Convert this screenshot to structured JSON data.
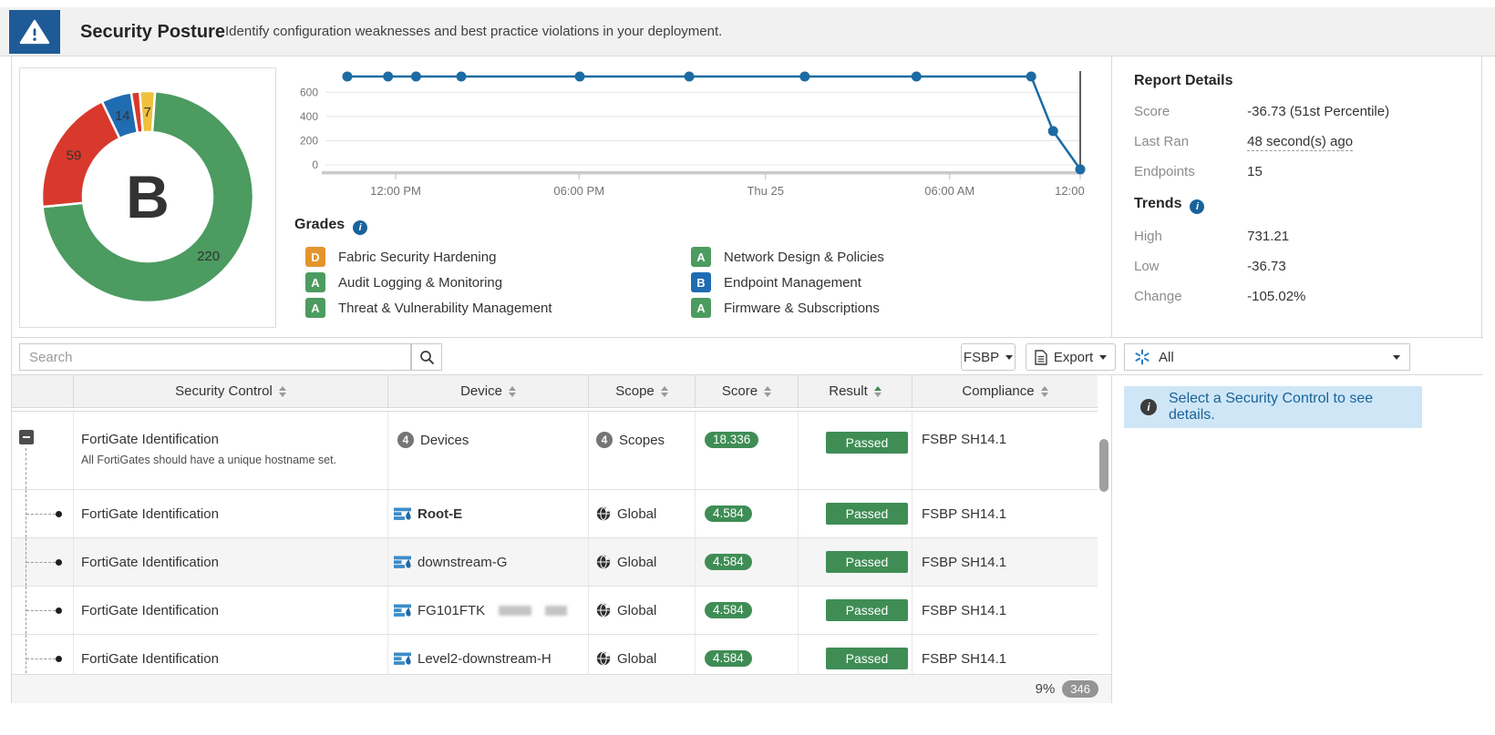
{
  "header": {
    "title": "Security Posture",
    "subtitle": "Identify configuration weaknesses and best practice violations in your deployment."
  },
  "icons": {
    "info": "i"
  },
  "colors": {
    "brand_blue": "#1e5b96",
    "grade_a_green": "#4c9b60",
    "grade_b_blue": "#1f6cb1",
    "grade_d_orange": "#e5942d",
    "fail_red": "#d8392c",
    "warn_yellow": "#efc03c",
    "pass_green": "#3f8d55",
    "chart_line": "#1c6ba4",
    "fabric_icon_blue": "#2e7fc0"
  },
  "chart_data": [
    {
      "type": "pie",
      "title": "",
      "center_label": "B",
      "start_angle": 4,
      "segments": [
        {
          "value": 220,
          "color": "#4c9b60",
          "label": "220"
        },
        {
          "value": 59,
          "color": "#d8392c",
          "label": "59"
        },
        {
          "value": 14,
          "color": "#1f6cb1",
          "label": "14"
        },
        {
          "value": 4,
          "color": "#d8392c",
          "label": ""
        },
        {
          "value": 7,
          "color": "#efc03c",
          "label": "7"
        }
      ]
    },
    {
      "type": "line",
      "title": "",
      "xlabel": "",
      "ylabel": "",
      "ylim": [
        -60,
        790
      ],
      "y_ticks": [
        0,
        200,
        400,
        600
      ],
      "x_ticks": [
        {
          "label": "12:00 PM",
          "pos": 0.093
        },
        {
          "label": "06:00 PM",
          "pos": 0.336
        },
        {
          "label": "Thu 25",
          "pos": 0.583
        },
        {
          "label": "06:00 AM",
          "pos": 0.827
        },
        {
          "label": "12:00 PM",
          "pos": 1.0
        }
      ],
      "points": [
        {
          "x": 0.029,
          "y": 731.21
        },
        {
          "x": 0.083,
          "y": 731.21
        },
        {
          "x": 0.12,
          "y": 731.21
        },
        {
          "x": 0.18,
          "y": 731.21
        },
        {
          "x": 0.337,
          "y": 731.21
        },
        {
          "x": 0.482,
          "y": 731.21
        },
        {
          "x": 0.635,
          "y": 731.21
        },
        {
          "x": 0.783,
          "y": 731.21
        },
        {
          "x": 0.935,
          "y": 731.21
        },
        {
          "x": 0.964,
          "y": 280
        },
        {
          "x": 1.0,
          "y": -36.73
        }
      ],
      "marker_x": 1.0,
      "line_color": "#1c6ba4"
    }
  ],
  "grades": {
    "title": "Grades",
    "items": [
      {
        "letter": "D",
        "color": "#e5942d",
        "label": "Fabric Security Hardening"
      },
      {
        "letter": "A",
        "color": "#4c9b60",
        "label": "Audit Logging & Monitoring"
      },
      {
        "letter": "A",
        "color": "#4c9b60",
        "label": "Threat & Vulnerability Management"
      },
      {
        "letter": "A",
        "color": "#4c9b60",
        "label": "Network Design & Policies"
      },
      {
        "letter": "B",
        "color": "#1f6cb1",
        "label": "Endpoint Management"
      },
      {
        "letter": "A",
        "color": "#4c9b60",
        "label": "Firmware & Subscriptions"
      }
    ]
  },
  "report": {
    "heading": "Report Details",
    "score_label": "Score",
    "score_value": "-36.73 (51st Percentile)",
    "last_ran_label": "Last Ran",
    "last_ran_value": "48 second(s) ago",
    "endpoints_label": "Endpoints",
    "endpoints_value": "15",
    "trends_heading": "Trends",
    "high_label": "High",
    "high_value": "731.21",
    "low_label": "Low",
    "low_value": "-36.73",
    "change_label": "Change",
    "change_value": "-105.02%"
  },
  "toolbar": {
    "search_placeholder": "Search",
    "fsbp_label": "FSBP",
    "export_label": "Export",
    "filter_value": "All"
  },
  "table": {
    "columns": [
      {
        "label": "Security Control",
        "sort": "none"
      },
      {
        "label": "Device",
        "sort": "none"
      },
      {
        "label": "Scope",
        "sort": "none"
      },
      {
        "label": "Score",
        "sort": "none"
      },
      {
        "label": "Result",
        "sort": "asc"
      },
      {
        "label": "Compliance",
        "sort": "none"
      }
    ],
    "rows": [
      {
        "level": "group",
        "expanded": true,
        "control": "FortiGate Identification",
        "description": "All FortiGates should have a unique hostname set.",
        "device": {
          "count": "4",
          "label": "Devices"
        },
        "scope": {
          "count": "4",
          "label": "Scopes"
        },
        "score": "18.336",
        "result": "Passed",
        "compliance": "FSBP SH14.1",
        "shaded": false
      },
      {
        "level": "child",
        "control": "FortiGate Identification",
        "device": {
          "icon": "fortigate",
          "name": "Root-E",
          "bold": true,
          "redacted": false
        },
        "scope": {
          "icon": "globe",
          "label": "Global"
        },
        "score": "4.584",
        "result": "Passed",
        "compliance": "FSBP SH14.1",
        "shaded": false
      },
      {
        "level": "child",
        "control": "FortiGate Identification",
        "device": {
          "icon": "fortigate",
          "name": "downstream-G",
          "bold": false,
          "redacted": false
        },
        "scope": {
          "icon": "globe",
          "label": "Global"
        },
        "score": "4.584",
        "result": "Passed",
        "compliance": "FSBP SH14.1",
        "shaded": true
      },
      {
        "level": "child",
        "control": "FortiGate Identification",
        "device": {
          "icon": "fortigate",
          "name": "FG101FTK",
          "bold": false,
          "redacted": true
        },
        "scope": {
          "icon": "globe",
          "label": "Global"
        },
        "score": "4.584",
        "result": "Passed",
        "compliance": "FSBP SH14.1",
        "shaded": false
      },
      {
        "level": "child",
        "control": "FortiGate Identification",
        "device": {
          "icon": "fortigate",
          "name": "Level2-downstream-H",
          "bold": false,
          "redacted": false
        },
        "scope": {
          "icon": "globe",
          "label": "Global"
        },
        "score": "4.584",
        "result": "Passed",
        "compliance": "FSBP SH14.1",
        "shaded": false
      }
    ]
  },
  "detail_panel": {
    "message": "Select a Security Control to see details."
  },
  "footer": {
    "progress": "9%",
    "count": "346"
  }
}
